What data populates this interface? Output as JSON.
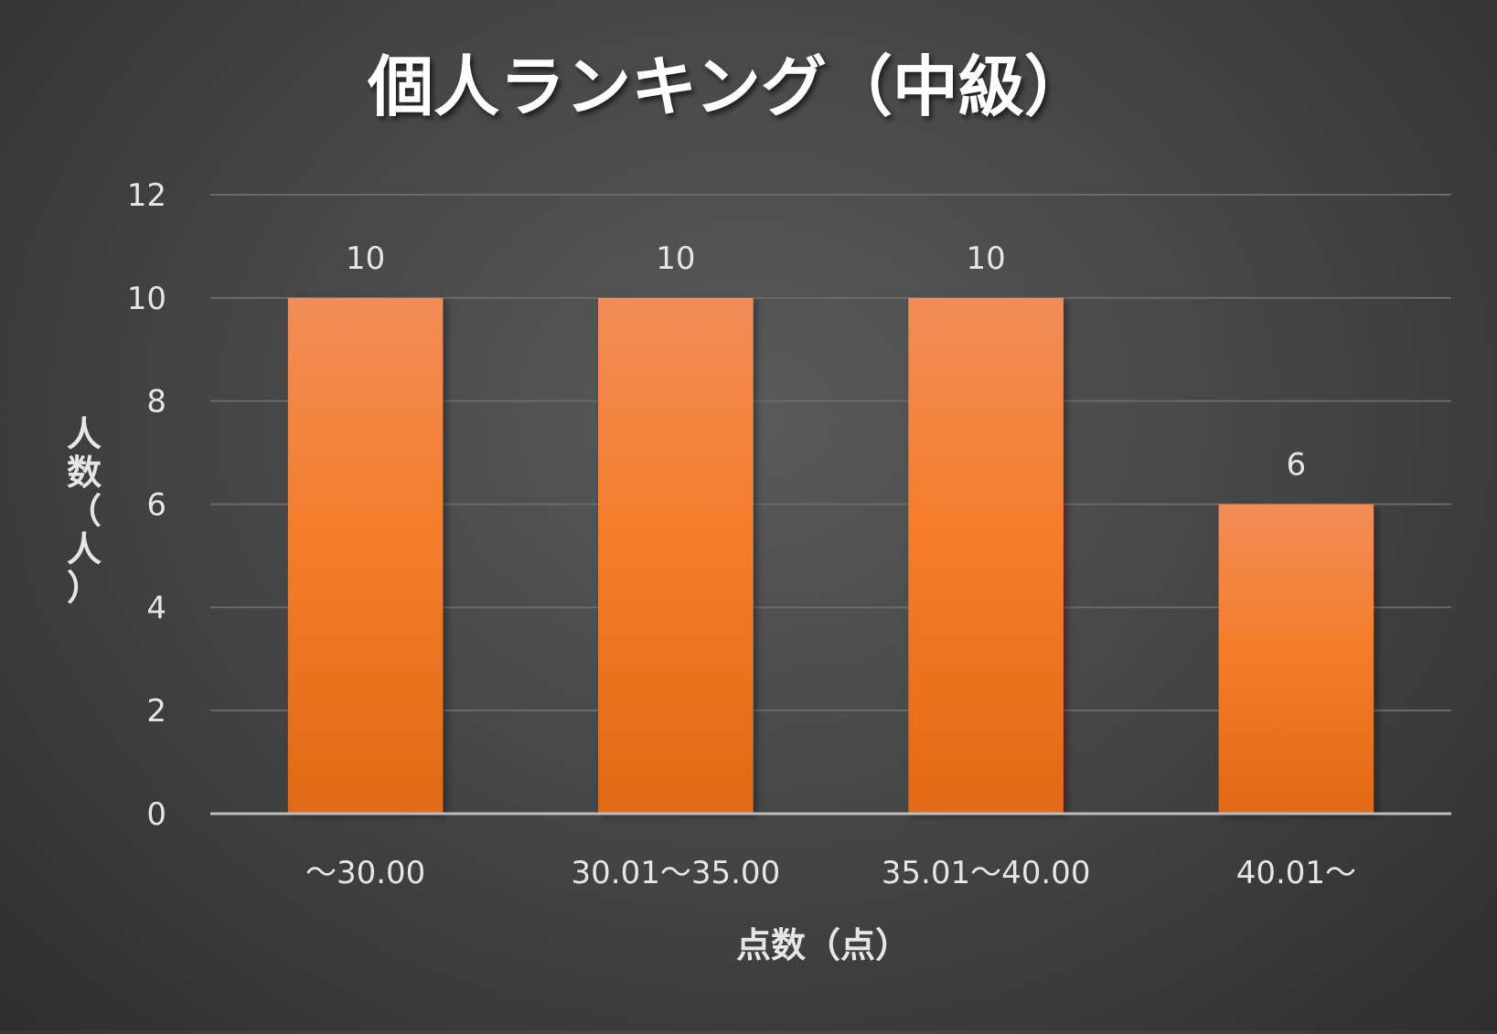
{
  "chart_data": {
    "type": "bar",
    "title": "個人ランキング（中級）",
    "xlabel": "点数（点）",
    "ylabel": "人数（人）",
    "categories": [
      "～30.00",
      "30.01～35.00",
      "35.01～40.00",
      "40.01～"
    ],
    "values": [
      10,
      10,
      10,
      6
    ],
    "ylim": [
      0,
      12
    ],
    "yticks": [
      0,
      2,
      4,
      6,
      8,
      10,
      12
    ],
    "data_labels": true,
    "grid": true,
    "legend": "none",
    "colors": {
      "bar_top": "#f28c58",
      "bar_mid": "#f47d2b",
      "bar_bottom": "#e26914",
      "grid": "#6a6a6a",
      "axis": "#bdbdbd",
      "text": "#e6e6e6",
      "title": "#ffffff"
    }
  }
}
